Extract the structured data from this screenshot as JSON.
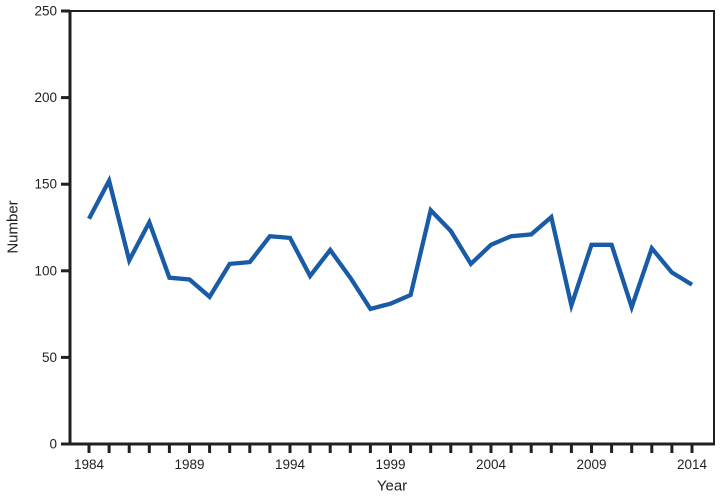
{
  "chart_data": {
    "type": "line",
    "xlabel": "Year",
    "ylabel": "Number",
    "ylim": [
      0,
      250
    ],
    "yticks": [
      0,
      50,
      100,
      150,
      200,
      250
    ],
    "x_range": [
      1984,
      2014
    ],
    "xtick_step": 1,
    "xtick_labeled": [
      1984,
      1989,
      1994,
      1999,
      2004,
      2009,
      2014
    ],
    "grid": false,
    "legend": "none",
    "line_color": "#1A5BA6",
    "axis_color": "#231F20",
    "text_color": "#231F20",
    "series": [
      {
        "x": [
          1984,
          1985,
          1986,
          1987,
          1988,
          1989,
          1990,
          1991,
          1992,
          1993,
          1994,
          1995,
          1996,
          1997,
          1998,
          1999,
          2000,
          2001,
          2002,
          2003,
          2004,
          2005,
          2006,
          2007,
          2008,
          2009,
          2010,
          2011,
          2012,
          2013,
          2014
        ],
        "values": [
          130,
          152,
          106,
          128,
          96,
          95,
          85,
          104,
          105,
          120,
          119,
          97,
          112,
          96,
          78,
          81,
          86,
          135,
          123,
          104,
          115,
          120,
          121,
          131,
          80,
          115,
          115,
          79,
          113,
          99,
          92
        ]
      }
    ]
  }
}
